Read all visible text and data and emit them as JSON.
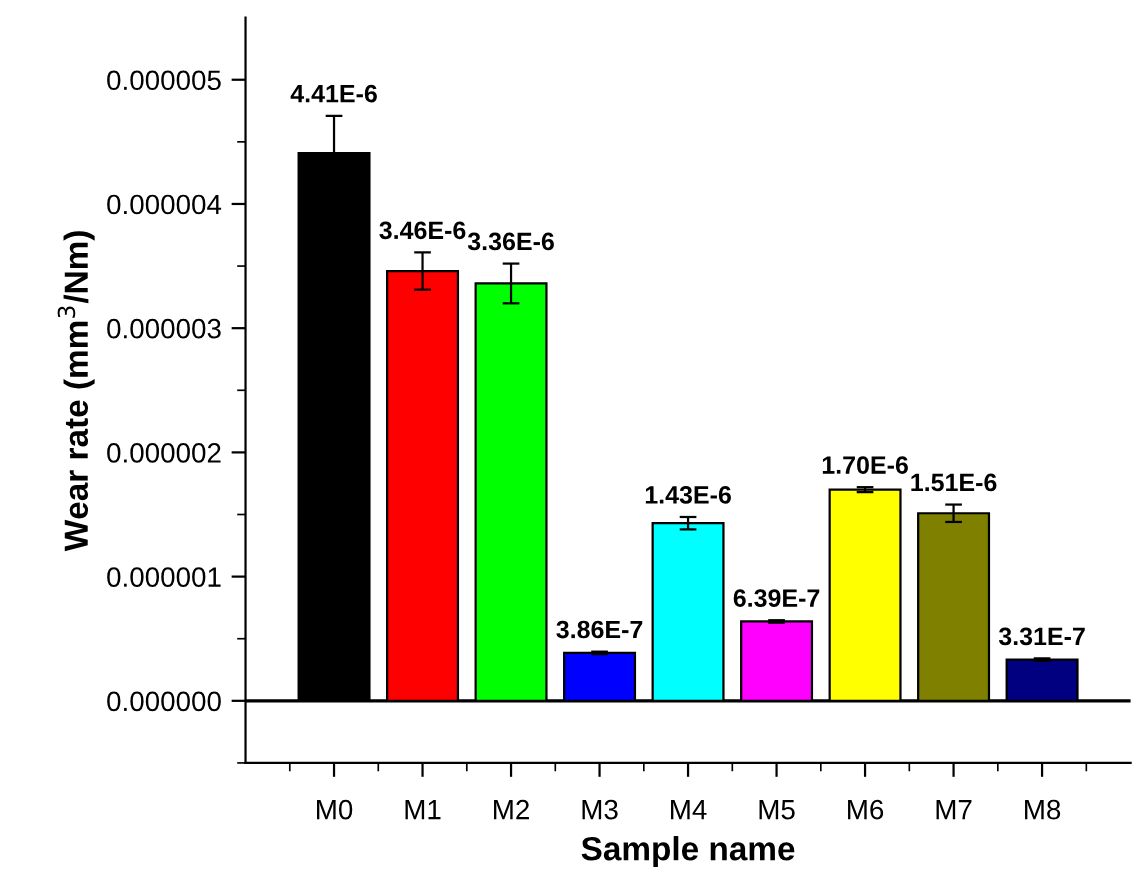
{
  "chart_data": {
    "type": "bar",
    "xlabel": "Sample name",
    "ylabel": "Wear rate (mm$^{3}$/Nm)",
    "categories": [
      "M0",
      "M1",
      "M2",
      "M3",
      "M4",
      "M5",
      "M6",
      "M7",
      "M8"
    ],
    "values": [
      4.41e-06,
      3.46e-06,
      3.36e-06,
      3.86e-07,
      1.43e-06,
      6.39e-07,
      1.7e-06,
      1.51e-06,
      3.31e-07
    ],
    "colors": [
      "#000000",
      "#ff0000",
      "#00ff00",
      "#0000ff",
      "#00ffff",
      "#ff00ff",
      "#ffff00",
      "#808000",
      "#000080"
    ],
    "errors": [
      3e-07,
      1.5e-07,
      1.6e-07,
      1e-08,
      5e-08,
      1e-08,
      2e-08,
      7e-08,
      1e-08
    ],
    "value_labels": [
      "4.41E-6",
      "3.46E-6",
      "3.36E-6",
      "3.86E-7",
      "1.43E-6",
      "6.39E-7",
      "1.70E-6",
      "1.51E-6",
      "3.31E-7"
    ],
    "ylim": [
      -5e-07,
      5.5e-06
    ],
    "yticks": [
      {
        "value": 0,
        "label": "0.000000"
      },
      {
        "value": 1e-06,
        "label": "0.000001"
      },
      {
        "value": 2e-06,
        "label": "0.000002"
      },
      {
        "value": 3e-06,
        "label": "0.000003"
      },
      {
        "value": 4e-06,
        "label": "0.000004"
      },
      {
        "value": 5e-06,
        "label": "0.000005"
      }
    ],
    "ref_lines": [
      {
        "axis": "y",
        "value": 0,
        "label": null,
        "color": "#000000"
      }
    ],
    "grid": false,
    "legend": false
  }
}
